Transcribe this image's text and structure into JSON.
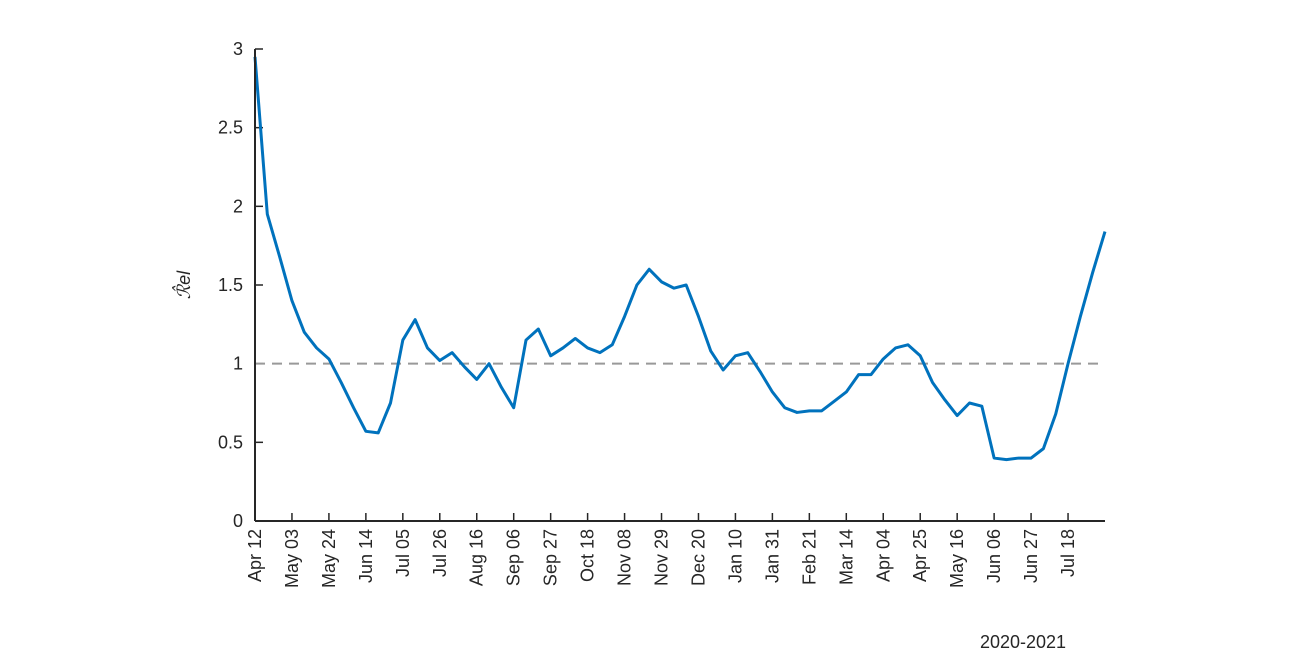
{
  "chart_data": {
    "type": "line",
    "ylabel": "ℛ̂el",
    "xlabel": "2020-2021",
    "categories": [
      "Apr 12",
      null,
      null,
      "May 03",
      null,
      null,
      "May 24",
      null,
      null,
      "Jun 14",
      null,
      null,
      "Jul 05",
      null,
      null,
      "Jul 26",
      null,
      null,
      "Aug 16",
      null,
      null,
      "Sep 06",
      null,
      null,
      "Sep 27",
      null,
      null,
      "Oct 18",
      null,
      null,
      "Nov 08",
      null,
      null,
      "Nov 29",
      null,
      null,
      "Dec 20",
      null,
      null,
      "Jan 10",
      null,
      null,
      "Jan 31",
      null,
      null,
      "Feb 21",
      null,
      null,
      "Mar 14",
      null,
      null,
      "Apr 04",
      null,
      null,
      "Apr 25",
      null,
      null,
      "May 16",
      null,
      null,
      "Jun 06",
      null,
      null,
      "Jun 27",
      null,
      null,
      "Jul 18",
      null,
      null,
      null
    ],
    "series": [
      {
        "color": "#0072bd",
        "values": [
          2.95,
          1.95,
          1.68,
          1.4,
          1.2,
          1.1,
          1.03,
          0.88,
          0.72,
          0.57,
          0.56,
          0.75,
          1.15,
          1.28,
          1.1,
          1.02,
          1.07,
          0.98,
          0.9,
          1.0,
          0.85,
          0.72,
          1.15,
          1.22,
          1.05,
          1.1,
          1.16,
          1.1,
          1.07,
          1.12,
          1.3,
          1.5,
          1.6,
          1.52,
          1.48,
          1.5,
          1.3,
          1.08,
          0.96,
          1.05,
          1.07,
          0.95,
          0.82,
          0.72,
          0.69,
          0.7,
          0.7,
          0.76,
          0.82,
          0.93,
          0.93,
          1.03,
          1.1,
          1.12,
          1.05,
          0.88,
          0.77,
          0.67,
          0.75,
          0.73,
          0.4,
          0.39,
          0.4,
          0.4,
          0.46,
          0.68,
          1.0,
          1.3,
          1.58,
          1.84
        ]
      }
    ],
    "ylim": [
      0,
      3
    ],
    "yticks": [
      0,
      0.5,
      1,
      1.5,
      2,
      2.5,
      3
    ],
    "hline": {
      "value": 1,
      "color": "#999999"
    }
  }
}
